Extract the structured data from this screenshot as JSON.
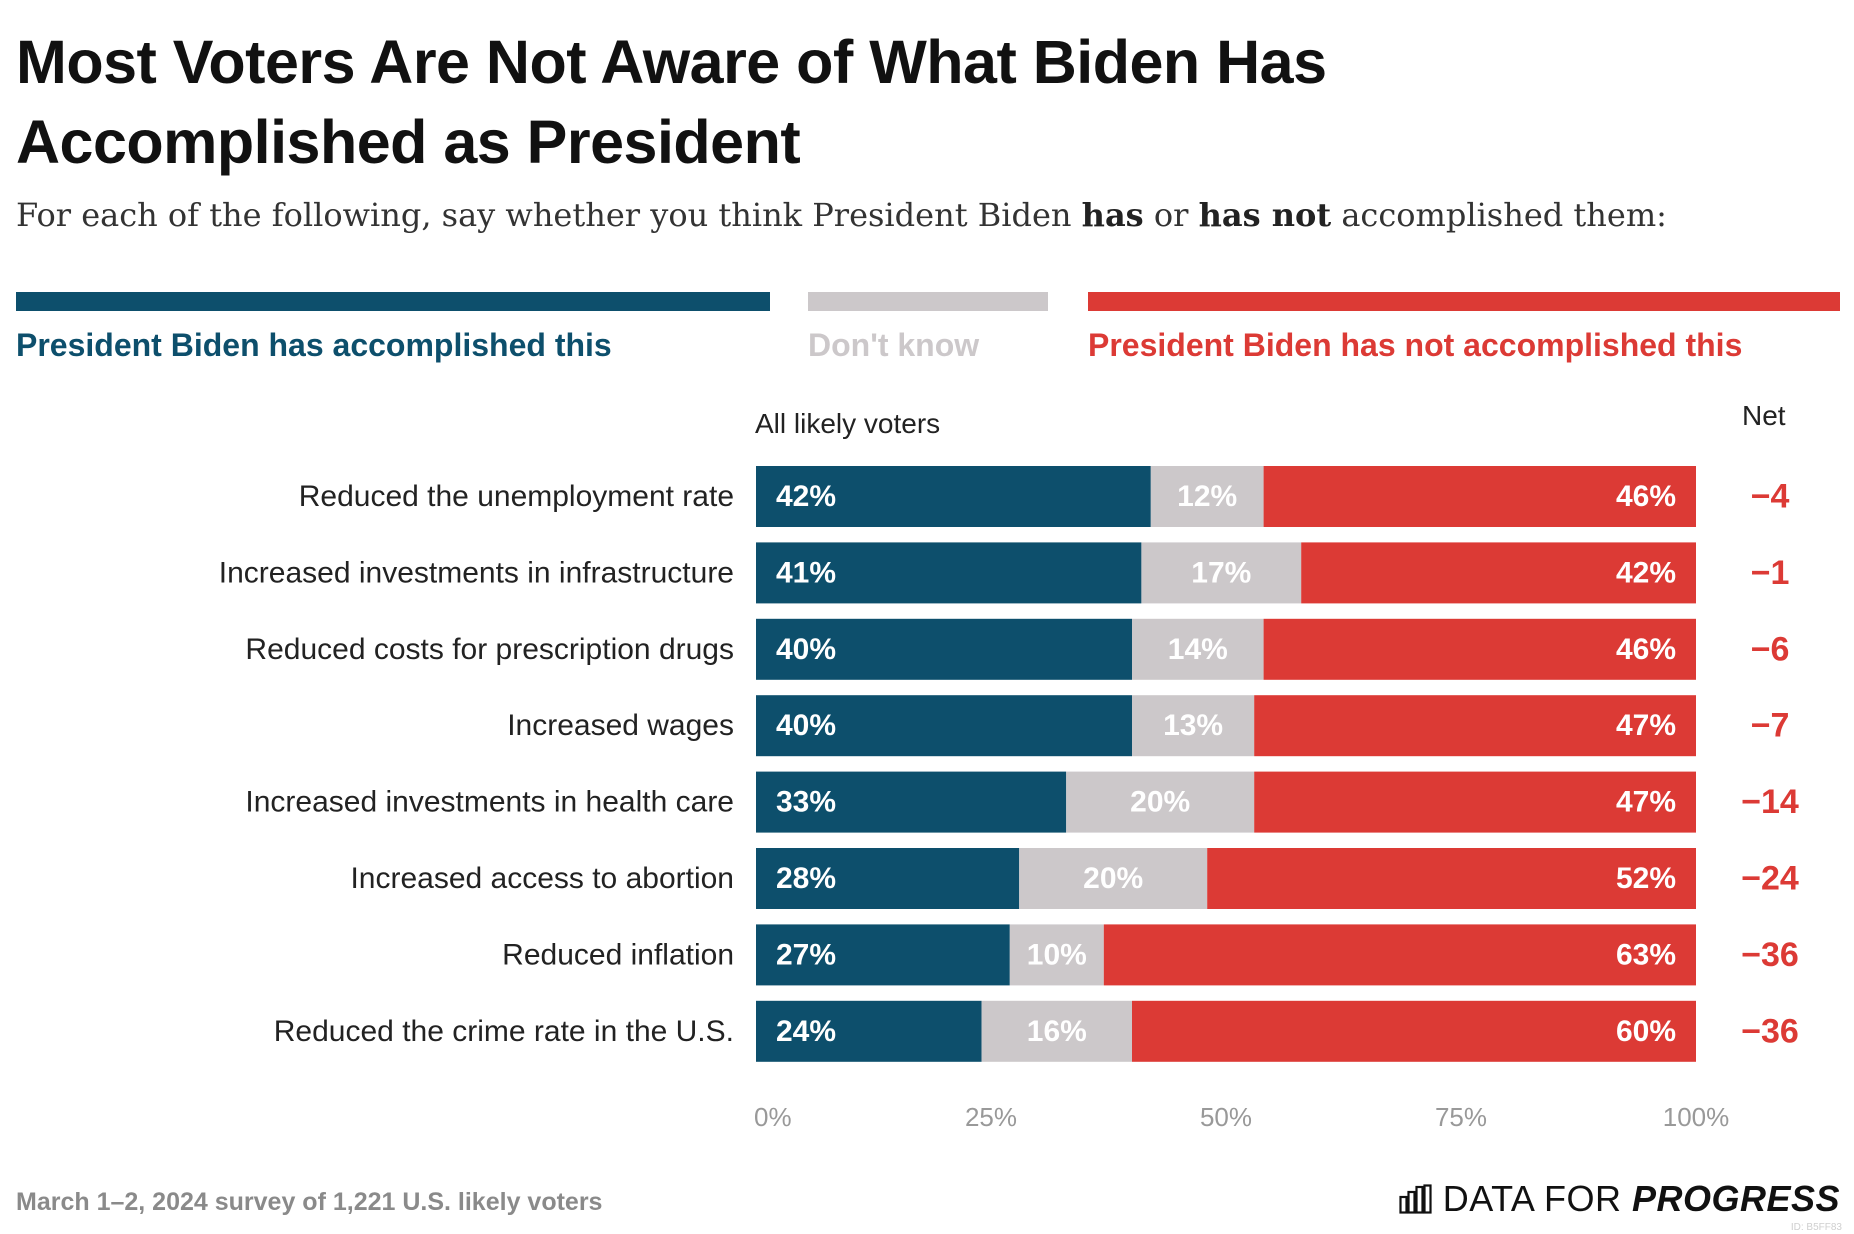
{
  "header": {
    "title": "Most Voters Are Not Aware of What Biden Has Accomplished as President",
    "subtitle_pre": "For each of the following, say whether you think President Biden ",
    "subtitle_has": "has",
    "subtitle_or": " or ",
    "subtitle_has_not": "has not",
    "subtitle_post": " accomplished them:"
  },
  "legend": [
    {
      "label": "President Biden has accomplished this",
      "color": "#0d4f6c"
    },
    {
      "label": "Don't know",
      "color": "#ccc8ca"
    },
    {
      "label": "President Biden has not accomplished this",
      "color": "#dc3a35"
    }
  ],
  "column_headers": {
    "group": "All likely voters",
    "net": "Net"
  },
  "colors": {
    "accomplished": "#0d4f6c",
    "dont_know": "#ccc8ca",
    "not_accomplished": "#dc3a35",
    "net": "#dc3a35",
    "axis": "#999999"
  },
  "chart_data": {
    "type": "bar",
    "orientation": "horizontal",
    "stacked": true,
    "categories": [
      "Reduced the unemployment rate",
      "Increased investments in infrastructure",
      "Reduced costs for prescription drugs",
      "Increased wages",
      "Increased investments in health care",
      "Increased access to abortion",
      "Reduced inflation",
      "Reduced the crime rate in the U.S."
    ],
    "series": [
      {
        "name": "President Biden has accomplished this",
        "values": [
          42,
          41,
          40,
          40,
          33,
          28,
          27,
          24
        ],
        "labels": [
          "42%",
          "41%",
          "40%",
          "40%",
          "33%",
          "28%",
          "27%",
          "24%"
        ]
      },
      {
        "name": "Don't know",
        "values": [
          12,
          17,
          14,
          13,
          20,
          20,
          10,
          16
        ],
        "labels": [
          "12%",
          "17%",
          "14%",
          "13%",
          "20%",
          "20%",
          "10%",
          "16%"
        ]
      },
      {
        "name": "President Biden has not accomplished this",
        "values": [
          46,
          42,
          46,
          47,
          47,
          52,
          63,
          60
        ],
        "labels": [
          "46%",
          "42%",
          "46%",
          "47%",
          "47%",
          "52%",
          "63%",
          "60%"
        ]
      }
    ],
    "net": [
      "−4",
      "−1",
      "−6",
      "−7",
      "−14",
      "−24",
      "−36",
      "−36"
    ],
    "xlim": [
      0,
      100
    ],
    "xticks": [
      0,
      25,
      50,
      75,
      100
    ],
    "xtick_labels": [
      "0%",
      "25%",
      "50%",
      "75%",
      "100%"
    ]
  },
  "footer": {
    "note": "March 1–2, 2024 survey of 1,221 U.S. likely voters",
    "logo_regular": "DATA FOR ",
    "logo_bold": "PROGRESS",
    "chart_id": "ID: B5FF83"
  }
}
